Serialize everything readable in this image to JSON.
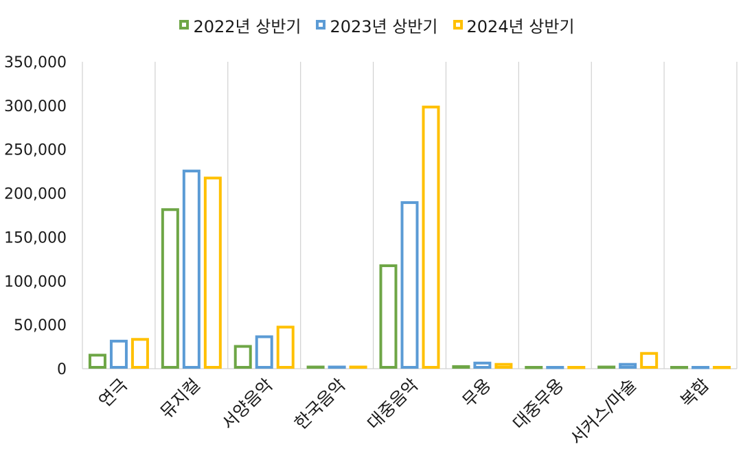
{
  "chart_data": {
    "type": "bar",
    "categories": [
      "연극",
      "뮤지컬",
      "서양음악",
      "한국음악",
      "대중음악",
      "무용",
      "대중무용",
      "서커스/마술",
      "복합"
    ],
    "series": [
      {
        "name": "2022년 상반기",
        "color": "#6ea646",
        "values": [
          17000,
          183000,
          27000,
          3500,
          119000,
          4000,
          1800,
          3500,
          1500
        ]
      },
      {
        "name": "2023년 상반기",
        "color": "#5b9bd5",
        "values": [
          33000,
          227000,
          38000,
          3500,
          191000,
          8000,
          1800,
          6500,
          1500
        ]
      },
      {
        "name": "2024년 상반기",
        "color": "#ffc000",
        "values": [
          35000,
          219000,
          49000,
          3500,
          300000,
          6500,
          1800,
          19000,
          1500
        ]
      }
    ],
    "ylim": [
      0,
      350000
    ],
    "yticks": [
      0,
      50000,
      100000,
      150000,
      200000,
      250000,
      300000,
      350000
    ],
    "ytick_labels": [
      "0",
      "50,000",
      "100,000",
      "150,000",
      "200,000",
      "250,000",
      "300,000",
      "350,000"
    ],
    "grid": "vertical category separators",
    "legend_position": "top-center",
    "title": "",
    "xlabel": "",
    "ylabel": ""
  }
}
